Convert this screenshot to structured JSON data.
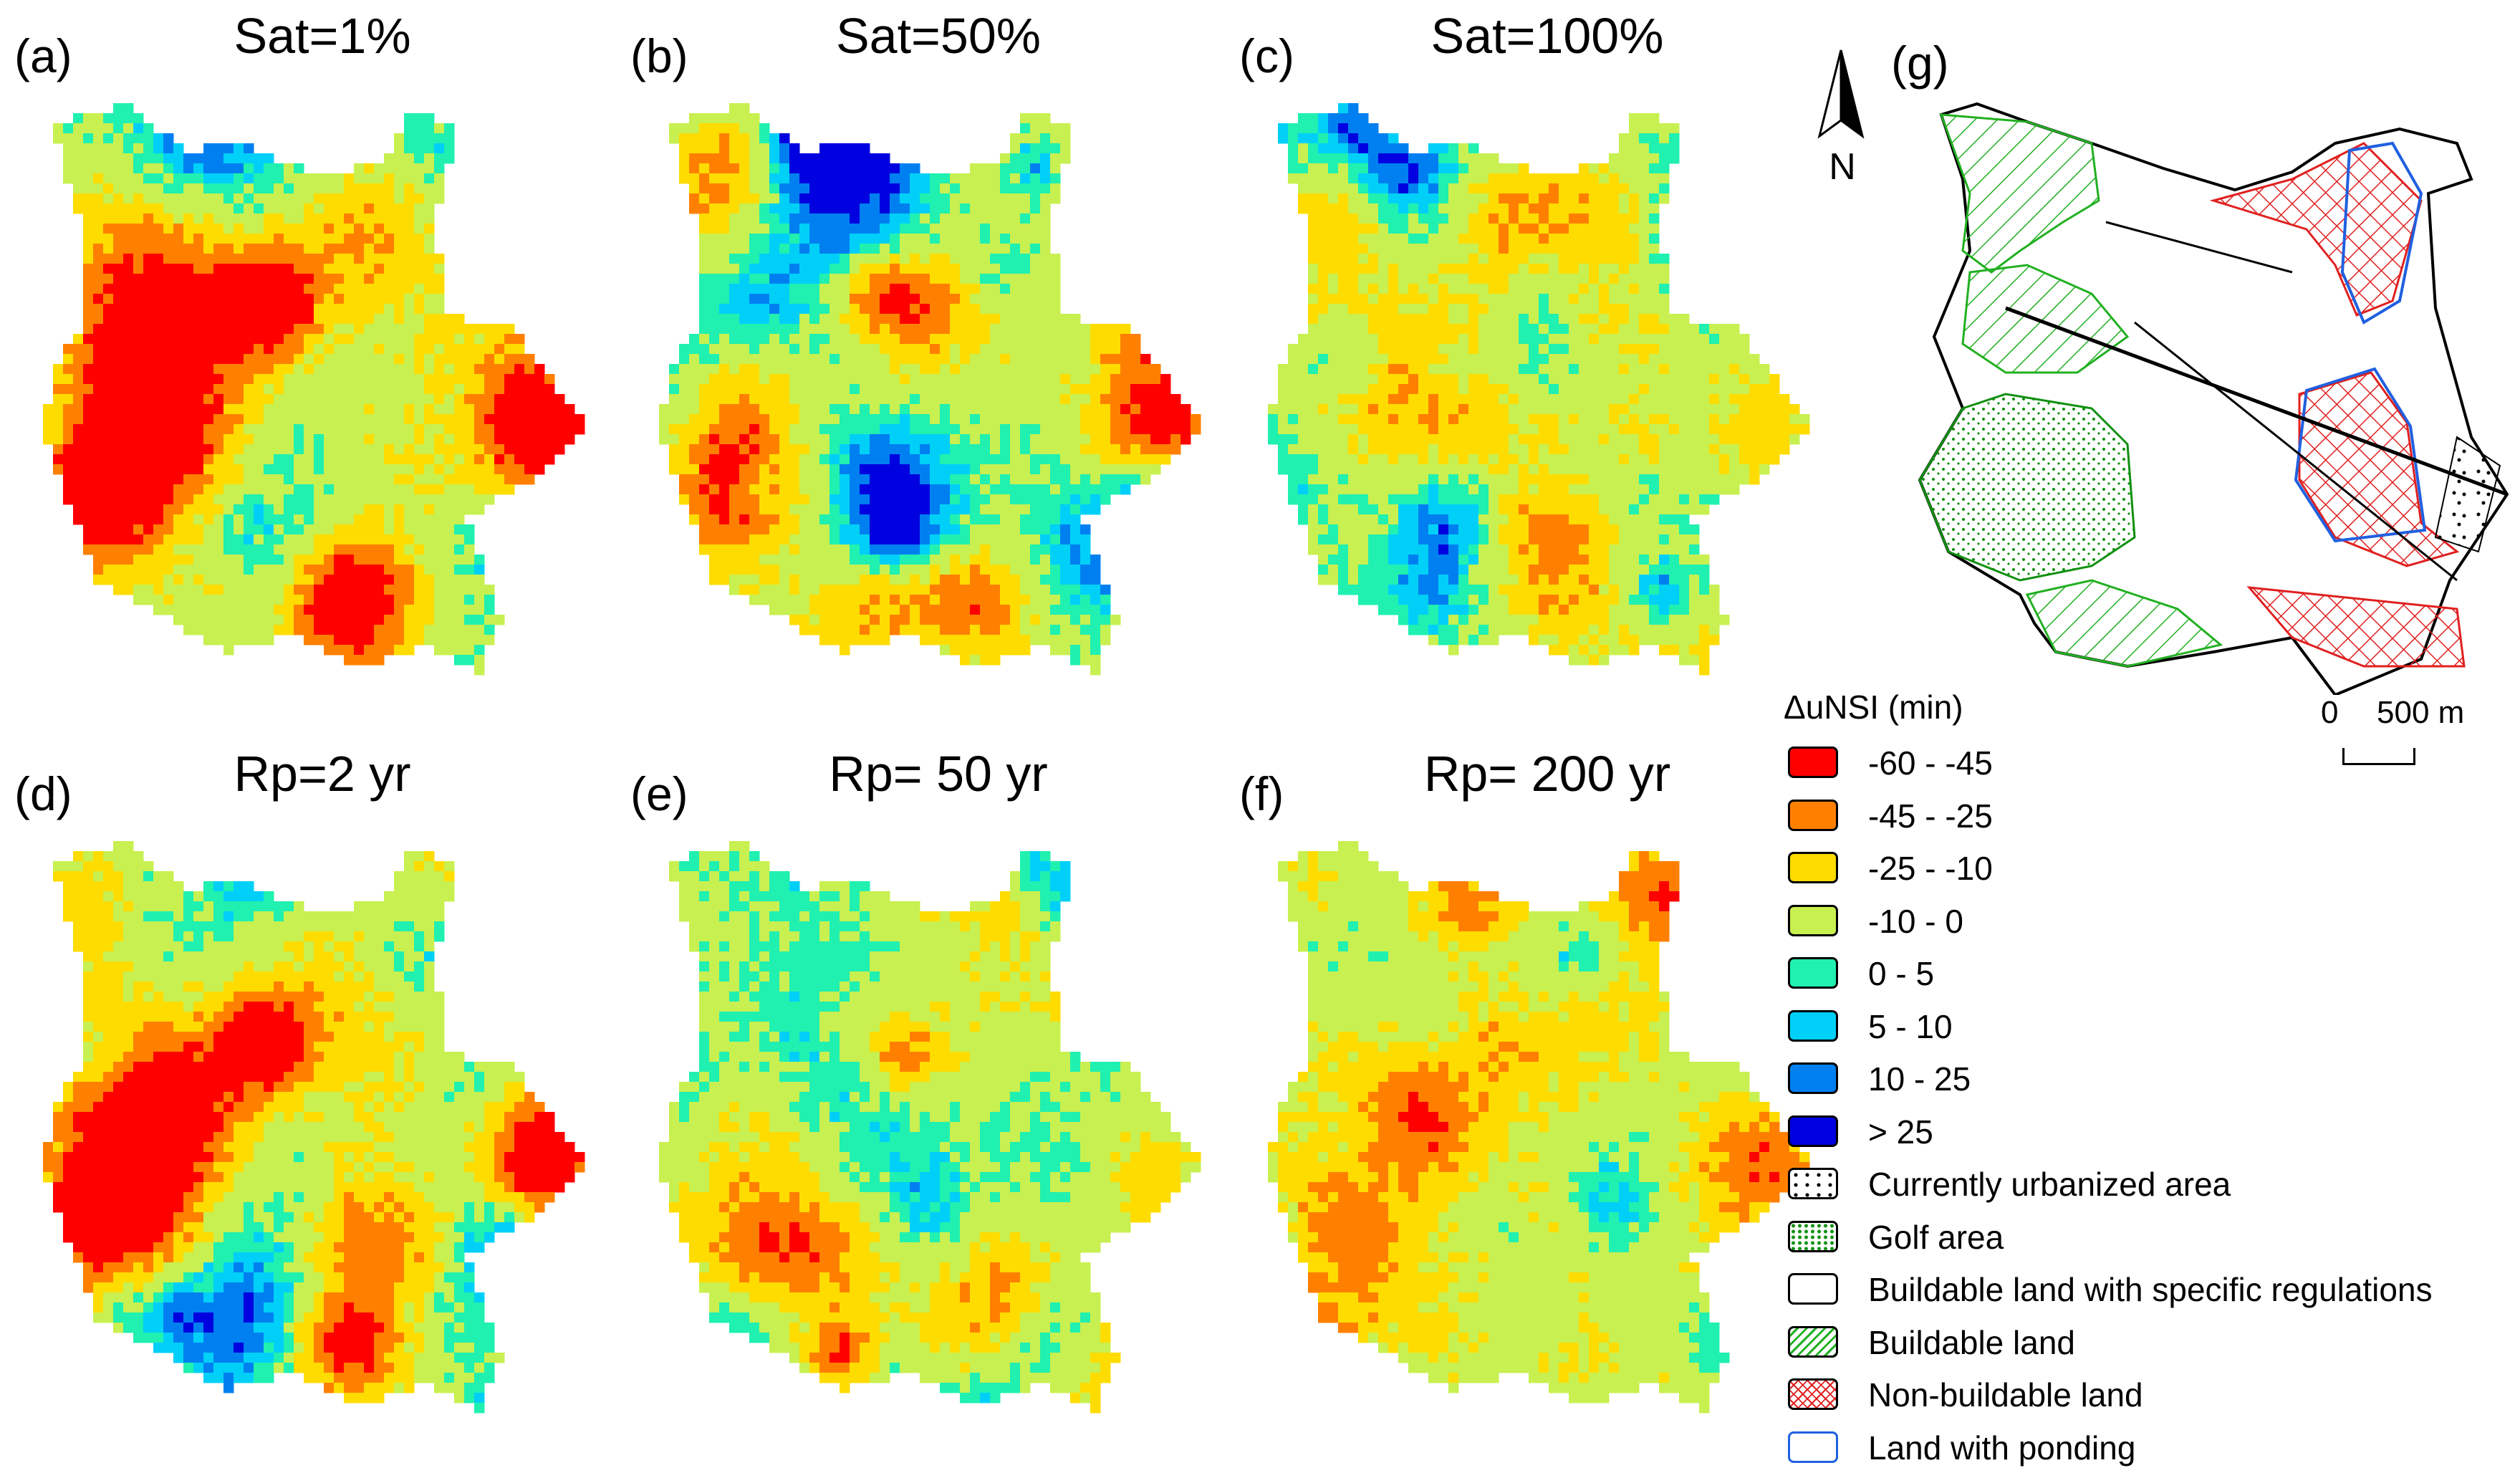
{
  "panels": [
    {
      "letter": "(a)",
      "title": "Sat=1%",
      "red": 1.0,
      "blue": 0.6
    },
    {
      "letter": "(b)",
      "title": "Sat=50%",
      "red": 0.75,
      "blue": 1.1
    },
    {
      "letter": "(c)",
      "title": "Sat=100%",
      "red": 0.3,
      "blue": 1.0
    },
    {
      "letter": "(d)",
      "title": "Rp=2 yr",
      "red": 1.0,
      "blue": 0.65
    },
    {
      "letter": "(e)",
      "title": "Rp= 50 yr",
      "red": 0.35,
      "blue": 0.8
    },
    {
      "letter": "(f)",
      "title": "Rp= 200 yr",
      "red": 0.35,
      "blue": 0.8
    }
  ],
  "map_g": {
    "letter": "(g)",
    "north_label": "N",
    "scale_zero": "0",
    "scale_distance": "500 m"
  },
  "legend": {
    "title": "ΔuNSI (min)",
    "classes": [
      {
        "label": "-60 - -45",
        "color": "#ff0000"
      },
      {
        "label": "-45 - -25",
        "color": "#ff8000"
      },
      {
        "label": "-25 - -10",
        "color": "#ffdc00"
      },
      {
        "label": "-10 - 0",
        "color": "#c8f050"
      },
      {
        "label": "0 - 5",
        "color": "#20f0b0"
      },
      {
        "label": "5 - 10",
        "color": "#00d0f8"
      },
      {
        "label": "10 - 25",
        "color": "#0080f0"
      },
      {
        "label": "> 25",
        "color": "#0000e0"
      }
    ],
    "land_classes": [
      {
        "label": "Currently urbanized area",
        "pattern": "dots-black"
      },
      {
        "label": "Golf area",
        "pattern": "dots-green"
      },
      {
        "label": "Buildable land with specific regulations",
        "pattern": "empty"
      },
      {
        "label": "Buildable land",
        "pattern": "hatch-green"
      },
      {
        "label": "Non-buildable land",
        "pattern": "crosshatch-red"
      },
      {
        "label": "Land with ponding",
        "pattern": "blue-outline"
      }
    ]
  }
}
